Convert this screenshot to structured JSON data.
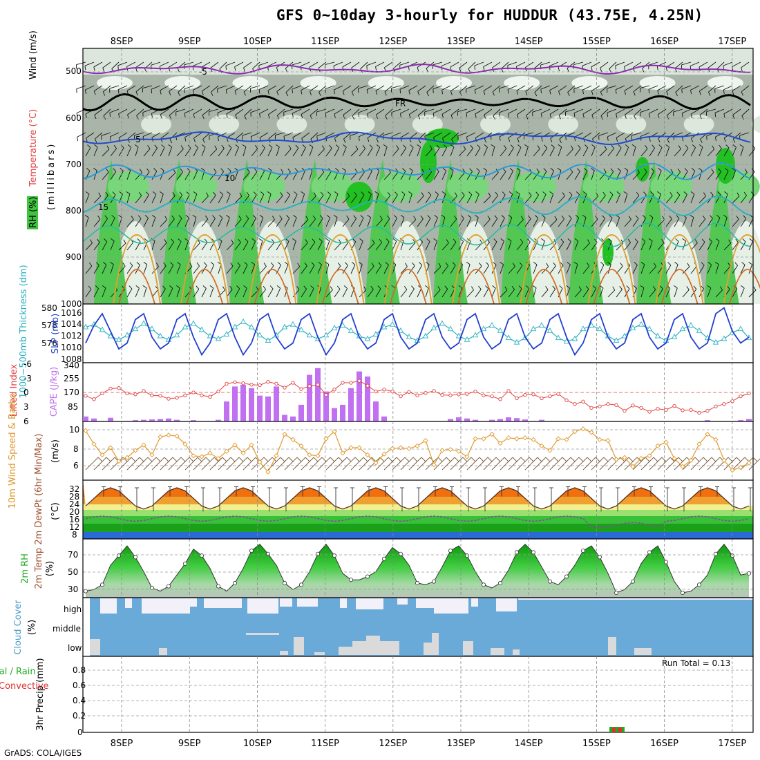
{
  "title": "GFS 0~10day 3-hourly for HUDDUR (43.75E, 4.25N)",
  "footer": "GrADS: COLA/IGES",
  "date_labels": [
    "8SEP",
    "9SEP",
    "10SEP",
    "11SEP",
    "12SEP",
    "13SEP",
    "14SEP",
    "15SEP",
    "16SEP",
    "17SEP"
  ],
  "colors": {
    "rh_green": "#3fc43f",
    "rh_grey": "#9aa89a",
    "slp": "#1f3fd0",
    "thick": "#2ab0c0",
    "cape": "#c070f0",
    "li": "#e04040",
    "wind10": "#e09a30",
    "precip_rain": "#22aa22",
    "precip_conv": "#e03030",
    "cloud": "#6aaad8"
  },
  "panels": {
    "upper": {
      "ylabel": "(millibars)",
      "legend": [
        "RH (%)",
        "Temperature (°C)",
        "Wind (m/s)"
      ],
      "yticks": [
        "500",
        "600",
        "700",
        "800",
        "900",
        "1000"
      ]
    },
    "slp": {
      "ylabel_left": "1000~500mb Thickness (dm)",
      "ylabel_right": "SLP (mb)",
      "left_ticks": [
        "576",
        "578",
        "580"
      ],
      "right_ticks": [
        "1008",
        "1010",
        "1012",
        "1014",
        "1016"
      ]
    },
    "cape": {
      "ylabel_left": "Lifted Index",
      "ylabel_right": "CAPE (J/kg)",
      "left_ticks": [
        "-6",
        "-3",
        "0",
        "3",
        "6"
      ],
      "right_ticks": [
        "340",
        "255",
        "170",
        "85"
      ]
    },
    "wind": {
      "ylabel": "10m Wind Speed & Barbs",
      "units": "(m/s)",
      "yticks": [
        "6",
        "8",
        "10"
      ]
    },
    "temp": {
      "ylabel": "2m Temp 2m DewPt (6hr Min/Max)",
      "units": "(°C)",
      "yticks": [
        "8",
        "12",
        "16",
        "20",
        "24",
        "28",
        "32"
      ]
    },
    "rh": {
      "ylabel": "2m RH",
      "units": "(%)",
      "yticks": [
        "30",
        "50",
        "70"
      ]
    },
    "cloud": {
      "ylabel": "Cloud Cover",
      "units": "(%)",
      "levels": [
        "high",
        "middle",
        "low"
      ]
    },
    "precip": {
      "ylabel": "3hr Precip (mm)",
      "legend": [
        "Total / Rain",
        "Convective"
      ],
      "yticks": [
        "0",
        "0.2",
        "0.4",
        "0.6",
        "0.8"
      ],
      "run_total": "Run Total = 0.13"
    }
  },
  "chart_data": [
    {
      "type": "line",
      "title": "SLP",
      "series": [
        {
          "name": "SLP",
          "values": [
            1011,
            1014,
            1016,
            1013,
            1010,
            1011,
            1015,
            1016,
            1012,
            1010,
            1011,
            1015,
            1016,
            1012,
            1009,
            1011,
            1015,
            1016,
            1012,
            1009,
            1011,
            1015,
            1016,
            1012,
            1010,
            1011,
            1015,
            1016,
            1012,
            1009,
            1011,
            1015,
            1016,
            1012,
            1010,
            1011,
            1015,
            1016,
            1012,
            1010,
            1011,
            1015,
            1016,
            1012,
            1010,
            1011,
            1015,
            1016,
            1012,
            1010,
            1011,
            1015,
            1016,
            1012,
            1010,
            1011,
            1015,
            1016,
            1012,
            1009,
            1011,
            1015,
            1016,
            1012,
            1010,
            1011,
            1015,
            1016,
            1012,
            1010,
            1011,
            1015,
            1016,
            1012,
            1010,
            1011,
            1016,
            1017,
            1013,
            1011,
            1012
          ]
        },
        {
          "name": "Thickness",
          "values": [
            577.8,
            578.1,
            577.5,
            576.8,
            576.4,
            576.9,
            577.6,
            578.2,
            577.6,
            576.8,
            576.4,
            576.9,
            577.8,
            578.2,
            577.5,
            576.8,
            576.5,
            577.0,
            577.8,
            578.4,
            577.8,
            576.9,
            576.3,
            576.9,
            577.8,
            578.1,
            577.5,
            576.9,
            576.5,
            576.9,
            577.7,
            578.0,
            577.4,
            576.8,
            576.5,
            577.0,
            577.8,
            578.1,
            577.4,
            576.7,
            576.3,
            576.8,
            577.7,
            578.2,
            577.6,
            576.8,
            576.4,
            576.9,
            577.6,
            578.0,
            577.4,
            576.6,
            576.1,
            576.6,
            577.6,
            578.0,
            577.4,
            576.6,
            576.2,
            576.5,
            577.6,
            578.0,
            577.6,
            576.8,
            576.3,
            576.8,
            577.7,
            578.1,
            577.6,
            576.8,
            576.3,
            576.7,
            577.6,
            578.0,
            577.4,
            576.6,
            576.1,
            576.5,
            577.2,
            577.6,
            576.6
          ]
        }
      ]
    },
    {
      "type": "bar",
      "title": "CAPE",
      "values": [
        30,
        18,
        0,
        22,
        0,
        0,
        8,
        10,
        12,
        15,
        18,
        10,
        0,
        8,
        0,
        0,
        10,
        120,
        210,
        220,
        200,
        155,
        150,
        210,
        40,
        30,
        100,
        280,
        320,
        180,
        80,
        100,
        200,
        300,
        270,
        120,
        30,
        0,
        0,
        0,
        0,
        0,
        0,
        0,
        15,
        25,
        18,
        10,
        0,
        10,
        15,
        25,
        20,
        12,
        0,
        10,
        0,
        0,
        0,
        0,
        0,
        0,
        0,
        0,
        0,
        0,
        0,
        0,
        0,
        0,
        0,
        0,
        0,
        0,
        0,
        8,
        0,
        0,
        0,
        8,
        15
      ]
    },
    {
      "type": "line",
      "title": "Lifted Index",
      "values": [
        0.7,
        1.4,
        0.2,
        -0.8,
        -0.9,
        0.2,
        0.4,
        -0.3,
        0.6,
        0.7,
        1.3,
        1.1,
        0.6,
        0.0,
        0.6,
        0.9,
        -0.2,
        -1.8,
        -2.1,
        -1.9,
        -1.6,
        -1.5,
        -2.2,
        -1.8,
        -1.0,
        -2.0,
        -0.7,
        -1.3,
        -1.6,
        0.5,
        -0.6,
        -2.0,
        -2.0,
        -2.4,
        -1.4,
        -0.2,
        -0.6,
        -0.2,
        0.8,
        -0.1,
        0.6,
        0.1,
        -0.3,
        0.5,
        0.6,
        0.4,
        0.3,
        -0.2,
        0.6,
        0.8,
        1.4,
        -0.3,
        1.2,
        0.5,
        0.4,
        1.2,
        0.8,
        0.3,
        1.6,
        2.4,
        1.9,
        3.2,
        2.9,
        2.4,
        2.6,
        3.8,
        2.7,
        3.2,
        4.0,
        3.4,
        3.6,
        2.8,
        3.7,
        3.6,
        4.2,
        3.8,
        2.9,
        2.4,
        1.8,
        0.8,
        0.2
      ]
    },
    {
      "type": "line",
      "title": "10m Wind Speed",
      "values": [
        9.9,
        8.4,
        7.2,
        8.0,
        6.5,
        6.9,
        7.7,
        8.3,
        7.2,
        9.2,
        9.4,
        9.3,
        8.4,
        7.1,
        7.0,
        7.4,
        6.8,
        7.6,
        8.3,
        7.4,
        8.3,
        6.4,
        5.3,
        7.1,
        9.5,
        8.9,
        8.2,
        7.2,
        7.1,
        9.0,
        9.8,
        7.4,
        8.0,
        8.0,
        7.2,
        6.3,
        7.3,
        7.9,
        8.0,
        7.9,
        8.2,
        8.8,
        6.1,
        7.7,
        7.8,
        7.6,
        7.0,
        9.0,
        9.0,
        9.5,
        8.5,
        9.1,
        9.0,
        9.1,
        8.9,
        8.2,
        7.7,
        9.0,
        8.9,
        9.8,
        10.1,
        9.7,
        8.9,
        8.8,
        6.7,
        6.9,
        5.9,
        6.8,
        7.1,
        8.2,
        8.6,
        6.8,
        5.9,
        6.6,
        8.4,
        9.5,
        8.9,
        6.6,
        5.5,
        5.8,
        6.3
      ]
    },
    {
      "type": "area",
      "title": "2m RH",
      "values": [
        28,
        30,
        36,
        60,
        72,
        84,
        70,
        52,
        32,
        28,
        34,
        48,
        62,
        80,
        72,
        56,
        34,
        28,
        38,
        56,
        78,
        86,
        74,
        60,
        38,
        30,
        36,
        52,
        74,
        86,
        72,
        50,
        42,
        42,
        46,
        52,
        68,
        82,
        74,
        60,
        38,
        36,
        40,
        58,
        78,
        84,
        72,
        52,
        36,
        32,
        38,
        54,
        76,
        86,
        76,
        58,
        40,
        36,
        46,
        60,
        78,
        84,
        70,
        50,
        26,
        30,
        40,
        62,
        76,
        84,
        64,
        40,
        26,
        28,
        36,
        48,
        74,
        86,
        72,
        48,
        50
      ]
    }
  ]
}
